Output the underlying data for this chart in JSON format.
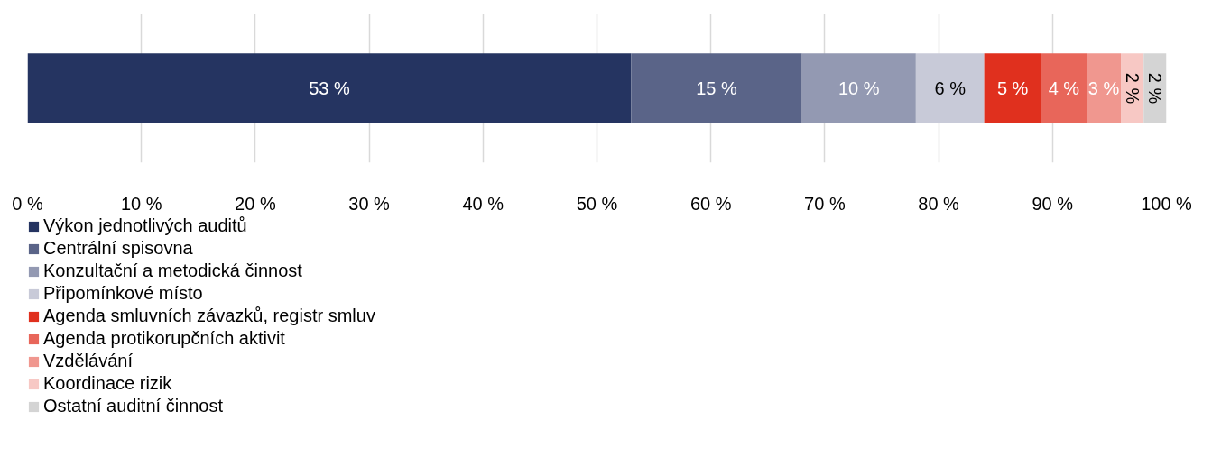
{
  "chart_data": {
    "type": "bar",
    "orientation": "horizontal",
    "stacked": true,
    "categories": [
      null
    ],
    "xlim": [
      0,
      100
    ],
    "xticks": [
      {
        "value": 0,
        "label": "0 %"
      },
      {
        "value": 10,
        "label": "10 %"
      },
      {
        "value": 20,
        "label": "20 %"
      },
      {
        "value": 30,
        "label": "30 %"
      },
      {
        "value": 40,
        "label": "40 %"
      },
      {
        "value": 50,
        "label": "50 %"
      },
      {
        "value": 60,
        "label": "60 %"
      },
      {
        "value": 70,
        "label": "70 %"
      },
      {
        "value": 80,
        "label": "80 %"
      },
      {
        "value": 90,
        "label": "90 %"
      },
      {
        "value": 100,
        "label": "100 %"
      }
    ],
    "grid": "x",
    "legend": "bottom",
    "series": [
      {
        "name": "Výkon jednotlivých auditů",
        "color": "#253461",
        "values": [
          53
        ],
        "value_labels": [
          "53 %"
        ]
      },
      {
        "name": "Centrální spisovna",
        "color": "#5a6488",
        "values": [
          15
        ],
        "value_labels": [
          "15 %"
        ]
      },
      {
        "name": "Konzultační a metodická činnost",
        "color": "#9399b2",
        "values": [
          10
        ],
        "value_labels": [
          "10 %"
        ]
      },
      {
        "name": "Připomínkové místo",
        "color": "#c8cad8",
        "values": [
          6
        ],
        "value_labels": [
          "6 %"
        ]
      },
      {
        "name": "Agenda smluvních závazků, registr smluv",
        "color": "#e0301e",
        "values": [
          5
        ],
        "value_labels": [
          "5 %"
        ]
      },
      {
        "name": "Agenda protikorupčních aktivit",
        "color": "#e8665a",
        "values": [
          4
        ],
        "value_labels": [
          "4 %"
        ]
      },
      {
        "name": "Vzdělávání",
        "color": "#f0978f",
        "values": [
          3
        ],
        "value_labels": [
          "3 %"
        ]
      },
      {
        "name": "Koordinace rizik",
        "color": "#f7c8c4",
        "values": [
          2
        ],
        "value_labels": [
          "2 %"
        ]
      },
      {
        "name": "Ostatní auditní činnost",
        "color": "#d4d4d4",
        "values": [
          2
        ],
        "value_labels": [
          "2 %"
        ]
      }
    ]
  }
}
